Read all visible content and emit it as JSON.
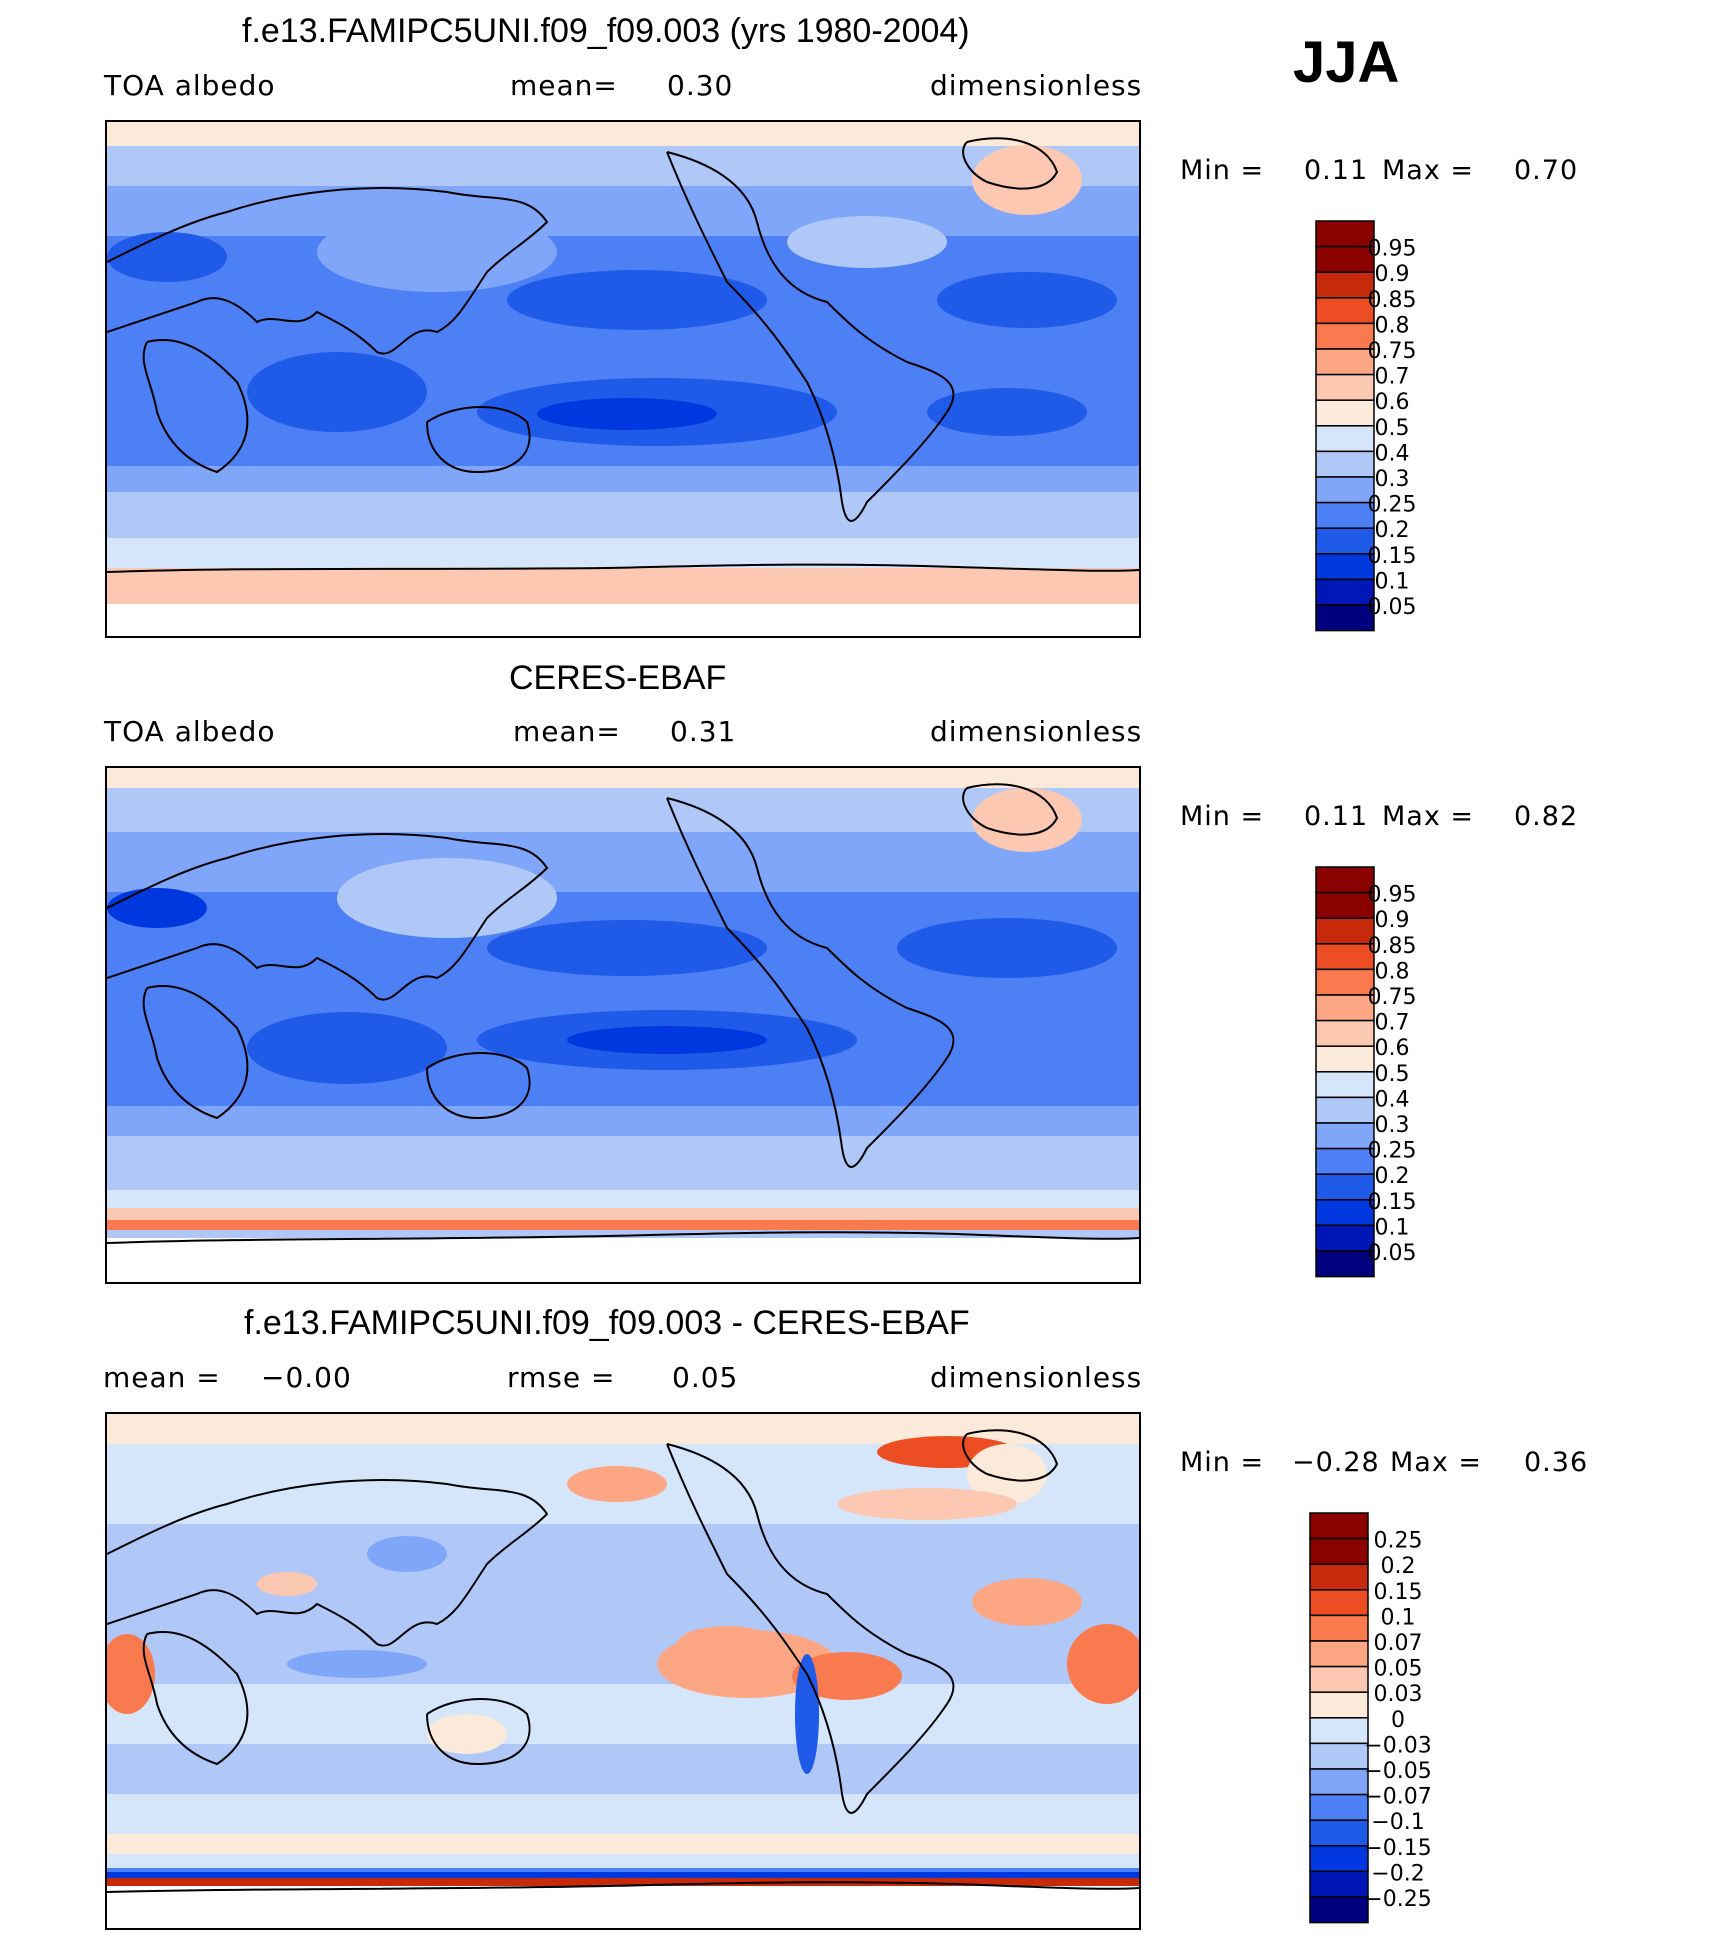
{
  "season": "JJA",
  "colors": {
    "abs_levels": [
      "#00007f",
      "#0017b8",
      "#0038e0",
      "#1f5ae8",
      "#4d80f5",
      "#7fa6f8",
      "#b0c8f8",
      "#d6e6fa",
      "#fbe9d9",
      "#fcc8b2",
      "#fca684",
      "#fa7a50",
      "#ec4d23",
      "#c62a0b",
      "#8b0000"
    ],
    "diff_levels": [
      "#00007f",
      "#0017b8",
      "#0038e0",
      "#1f5ae8",
      "#4d80f5",
      "#7fa6f8",
      "#b0c8f8",
      "#d6e6fa",
      "#fbe9d9",
      "#fcc8b2",
      "#fca684",
      "#fa7a50",
      "#ec4d23",
      "#c62a0b",
      "#8b0000"
    ]
  },
  "panels": [
    {
      "title": "f.e13.FAMIPC5UNI.f09_f09.003 (yrs 1980-2004)",
      "left_label": "TOA  albedo",
      "center_label": "mean=",
      "center_value": "0.30",
      "right_label": "dimensionless",
      "min_label": "Min =",
      "min_value": "0.11",
      "max_label": "Max =",
      "max_value": "0.70",
      "colorbar_labels": [
        "0.95",
        "0.9",
        "0.85",
        "0.8",
        "0.75",
        "0.7",
        "0.6",
        "0.5",
        "0.4",
        "0.3",
        "0.25",
        "0.2",
        "0.15",
        "0.1",
        "0.05"
      ]
    },
    {
      "title": "CERES-EBAF",
      "left_label": "TOA  albedo",
      "center_label": "mean=",
      "center_value": "0.31",
      "right_label": "dimensionless",
      "min_label": "Min =",
      "min_value": "0.11",
      "max_label": "Max =",
      "max_value": "0.82",
      "colorbar_labels": [
        "0.95",
        "0.9",
        "0.85",
        "0.8",
        "0.75",
        "0.7",
        "0.6",
        "0.5",
        "0.4",
        "0.3",
        "0.25",
        "0.2",
        "0.15",
        "0.1",
        "0.05"
      ]
    },
    {
      "title": "f.e13.FAMIPC5UNI.f09_f09.003 - CERES-EBAF",
      "left_label": "mean =",
      "left_value": "−0.00",
      "center_label": "rmse =",
      "center_value": "0.05",
      "right_label": "dimensionless",
      "min_label": "Min =",
      "min_value": "−0.28",
      "max_label": "Max =",
      "max_value": "0.36",
      "colorbar_labels": [
        "0.25",
        "0.2",
        "0.15",
        "0.1",
        "0.07",
        "0.05",
        "0.03",
        "0",
        "−0.03",
        "−0.05",
        "−0.07",
        "−0.1",
        "−0.15",
        "−0.2",
        "−0.25"
      ]
    }
  ]
}
